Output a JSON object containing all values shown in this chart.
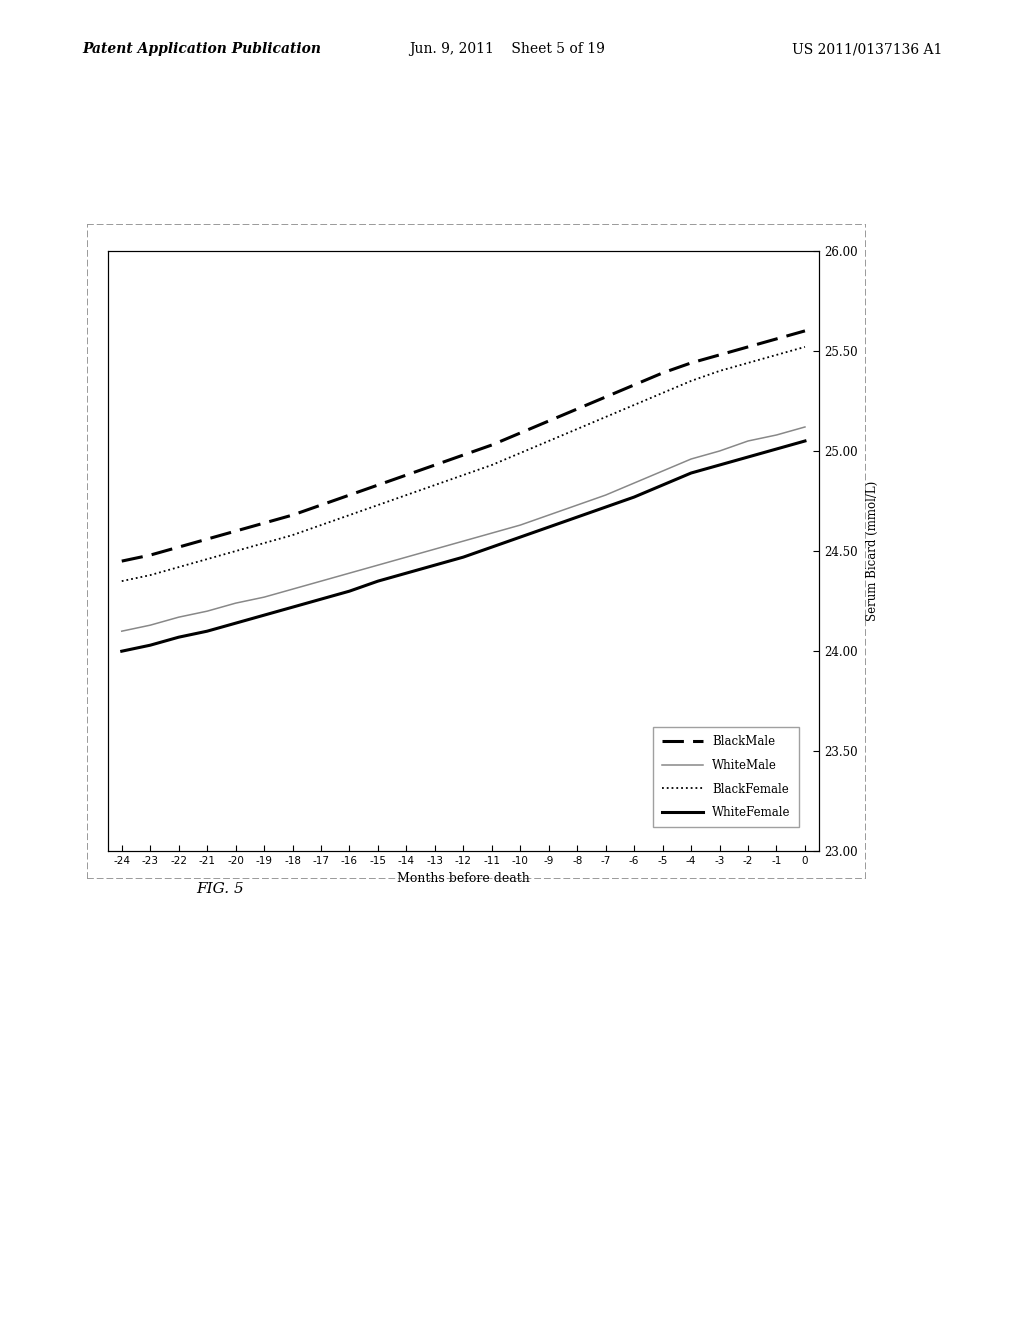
{
  "x": [
    -24,
    -23,
    -22,
    -21,
    -20,
    -19,
    -18,
    -17,
    -16,
    -15,
    -14,
    -13,
    -12,
    -11,
    -10,
    -9,
    -8,
    -7,
    -6,
    -5,
    -4,
    -3,
    -2,
    -1,
    0
  ],
  "BlackMale": [
    24.45,
    24.48,
    24.52,
    24.56,
    24.6,
    24.64,
    24.68,
    24.73,
    24.78,
    24.83,
    24.88,
    24.93,
    24.98,
    25.03,
    25.09,
    25.15,
    25.21,
    25.27,
    25.33,
    25.39,
    25.44,
    25.48,
    25.52,
    25.56,
    25.6
  ],
  "BlackFemale": [
    24.35,
    24.38,
    24.42,
    24.46,
    24.5,
    24.54,
    24.58,
    24.63,
    24.68,
    24.73,
    24.78,
    24.83,
    24.88,
    24.93,
    24.99,
    25.05,
    25.11,
    25.17,
    25.23,
    25.29,
    25.35,
    25.4,
    25.44,
    25.48,
    25.52
  ],
  "WhiteMale": [
    24.1,
    24.13,
    24.17,
    24.2,
    24.24,
    24.27,
    24.31,
    24.35,
    24.39,
    24.43,
    24.47,
    24.51,
    24.55,
    24.59,
    24.63,
    24.68,
    24.73,
    24.78,
    24.84,
    24.9,
    24.96,
    25.0,
    25.05,
    25.08,
    25.12
  ],
  "WhiteFemale": [
    24.0,
    24.03,
    24.07,
    24.1,
    24.14,
    24.18,
    24.22,
    24.26,
    24.3,
    24.35,
    24.39,
    24.43,
    24.47,
    24.52,
    24.57,
    24.62,
    24.67,
    24.72,
    24.77,
    24.83,
    24.89,
    24.93,
    24.97,
    25.01,
    25.05
  ],
  "xlabel": "Months before death",
  "ylabel": "Serum Bicard (mmol/L)",
  "ylim": [
    23.0,
    26.0
  ],
  "yticks": [
    23.0,
    23.5,
    24.0,
    24.5,
    25.0,
    25.5,
    26.0
  ],
  "xticks": [
    -24,
    -23,
    -22,
    -21,
    -20,
    -19,
    -18,
    -17,
    -16,
    -15,
    -14,
    -13,
    -12,
    -11,
    -10,
    -9,
    -8,
    -7,
    -6,
    -5,
    -4,
    -3,
    -2,
    -1,
    0
  ],
  "header_left": "Patent Application Publication",
  "header_mid": "Jun. 9, 2011    Sheet 5 of 19",
  "header_right": "US 2011/0137136 A1",
  "fig_label": "FIG. 5",
  "background_color": "#ffffff",
  "plot_bg": "#ffffff"
}
